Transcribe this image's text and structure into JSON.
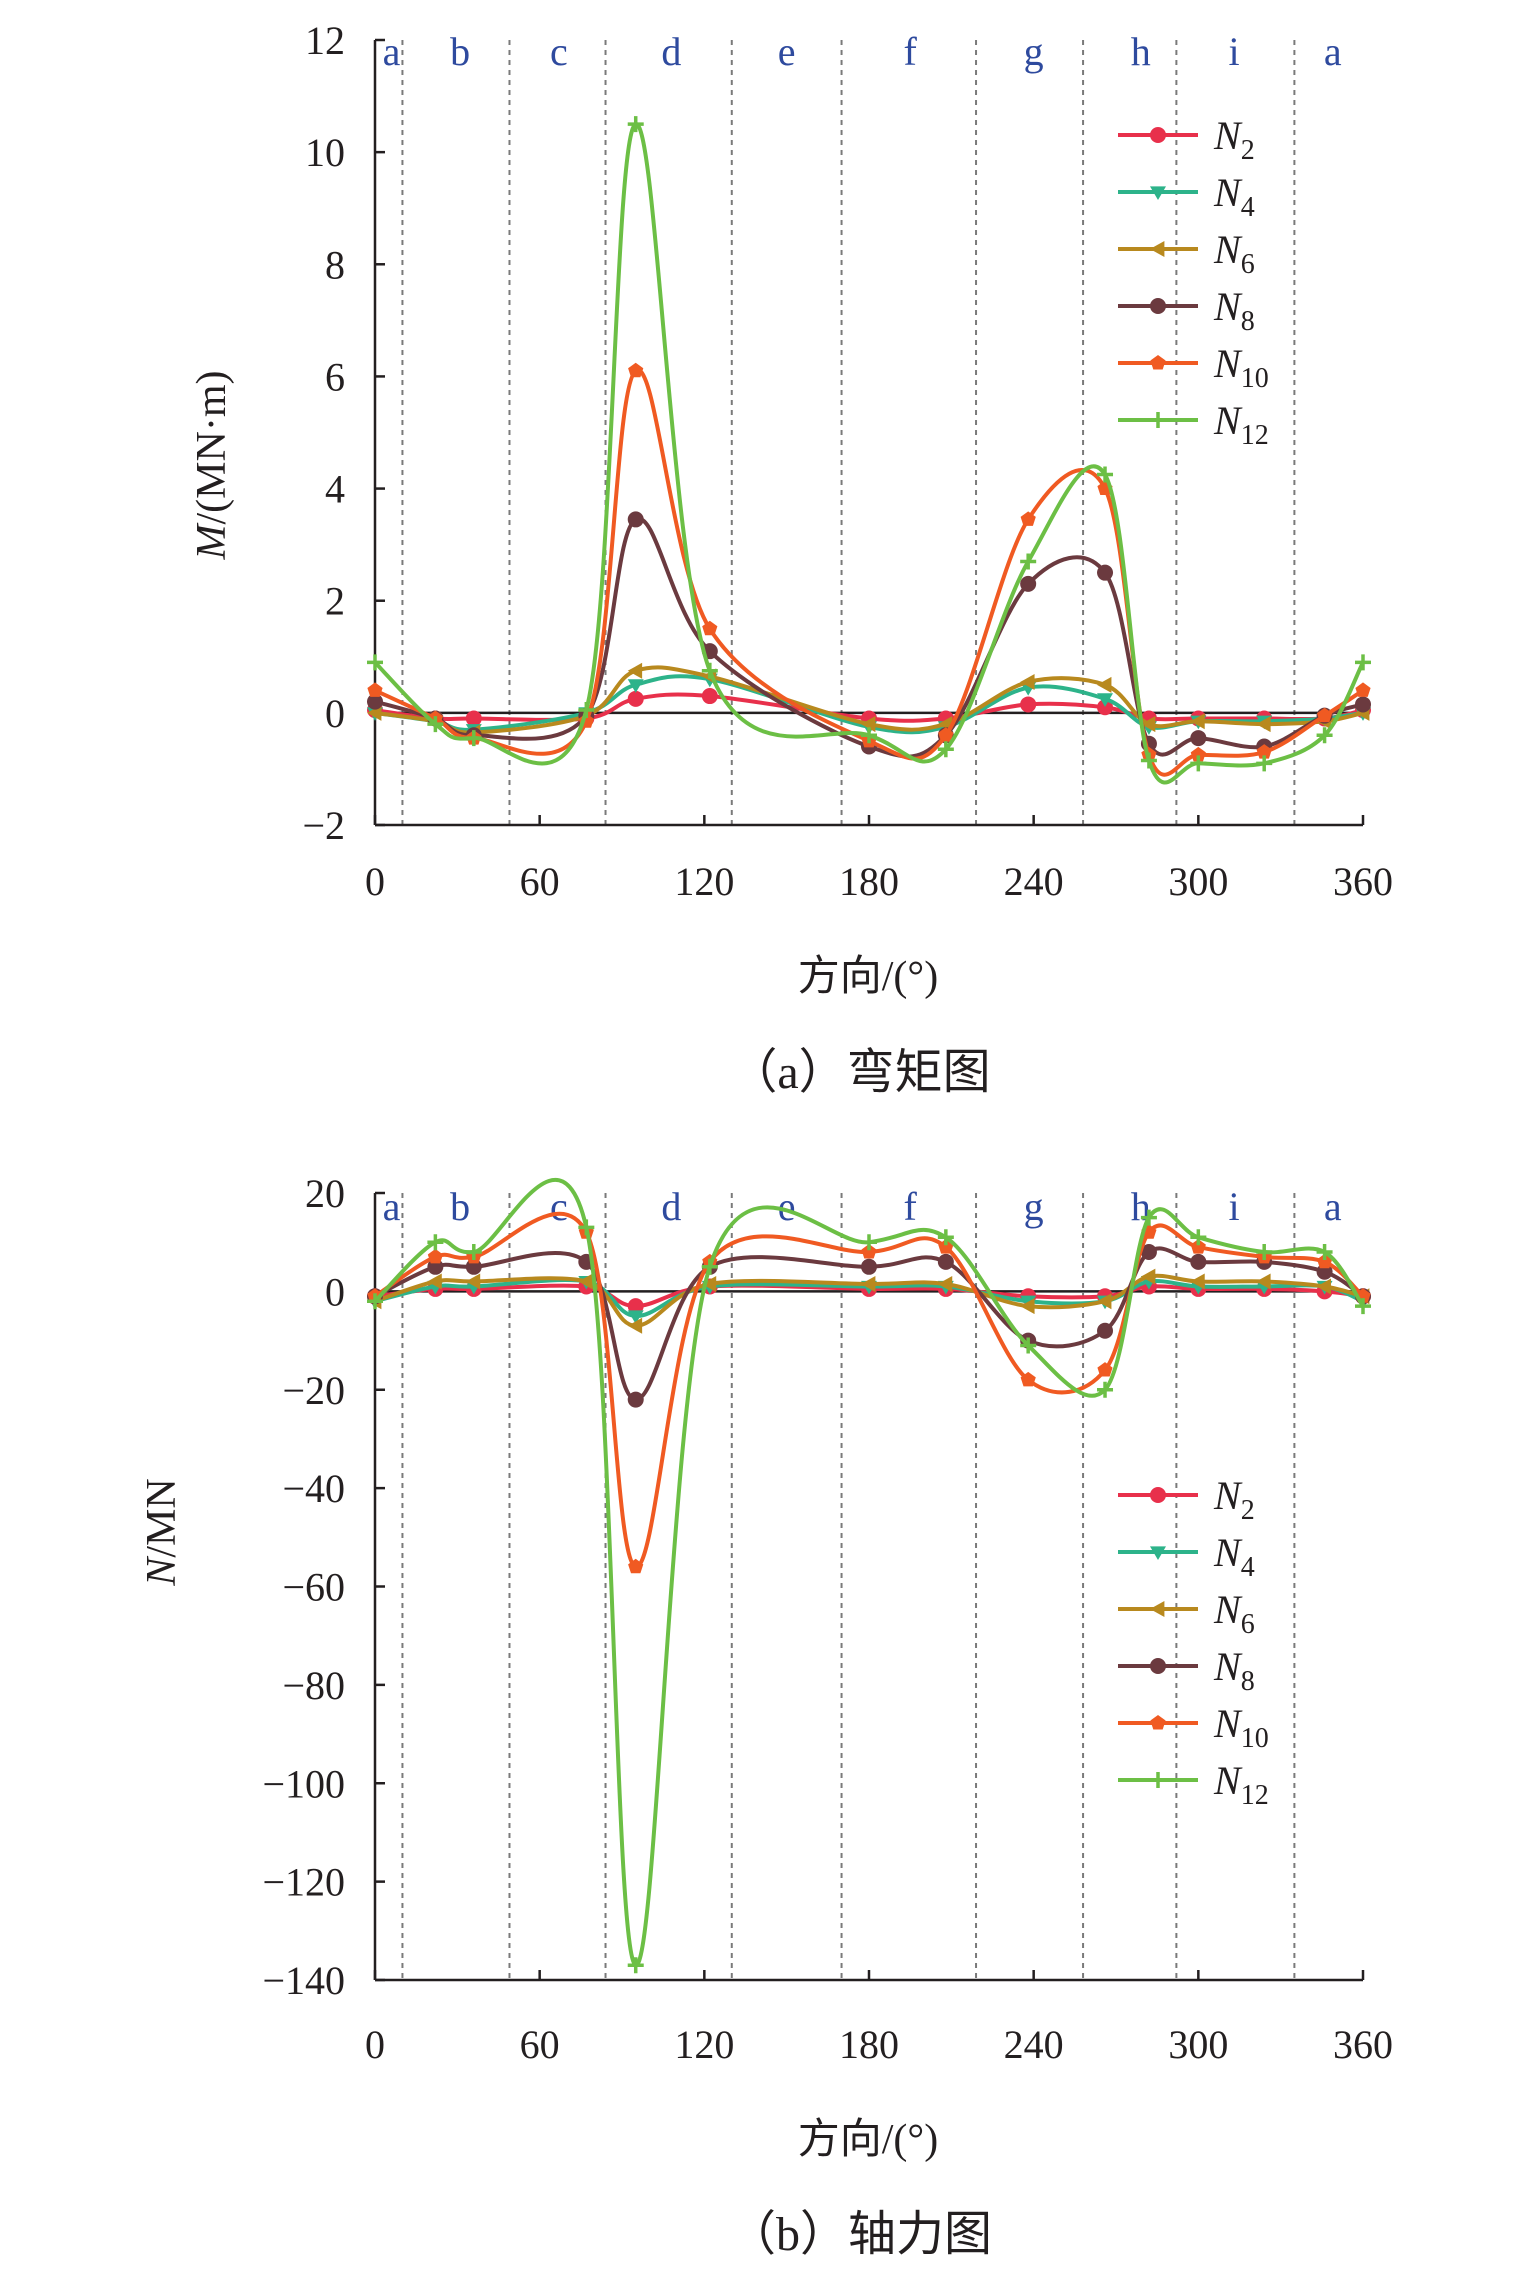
{
  "figure": {
    "series_styles": [
      {
        "key": "N2",
        "name": "N",
        "sub": "2",
        "color": "#e8304b",
        "marker": "circle"
      },
      {
        "key": "N4",
        "name": "N",
        "sub": "4",
        "color": "#2db38a",
        "marker": "tri-down"
      },
      {
        "key": "N6",
        "name": "N",
        "sub": "6",
        "color": "#b8891e",
        "marker": "tri-left"
      },
      {
        "key": "N8",
        "name": "N",
        "sub": "8",
        "color": "#6b3a3f",
        "marker": "circle"
      },
      {
        "key": "N10",
        "name": "N",
        "sub": "10",
        "color": "#f05a22",
        "marker": "pentagon"
      },
      {
        "key": "N12",
        "name": "N",
        "sub": "12",
        "color": "#6cbf45",
        "marker": "plus"
      }
    ]
  },
  "chart_data": [
    {
      "type": "line",
      "title": "",
      "caption": "（a）弯矩图",
      "xlabel": "方向/(°)",
      "ylabel_italic": "M",
      "ylabel_rest": "/(MN·m)",
      "xlim": [
        0,
        360
      ],
      "ylim": [
        -2,
        12
      ],
      "xticks": [
        "0",
        "60",
        "120",
        "180",
        "240",
        "300",
        "360"
      ],
      "yticks": [
        "−2",
        "0",
        "2",
        "4",
        "6",
        "8",
        "10",
        "12"
      ],
      "ytick_values": [
        -2,
        0,
        2,
        4,
        6,
        8,
        10,
        12
      ],
      "region_boundaries": [
        10,
        49,
        84,
        130,
        170,
        219,
        258,
        292,
        335
      ],
      "region_labels": [
        "a",
        "b",
        "c",
        "d",
        "e",
        "f",
        "g",
        "h",
        "i",
        "a"
      ],
      "region_label_x": [
        6,
        31,
        67,
        108,
        150,
        195,
        240,
        279,
        313,
        349
      ],
      "legend_position": "top-right",
      "x": [
        0,
        22,
        36,
        77,
        95,
        122,
        180,
        208,
        238,
        266,
        282,
        300,
        324,
        346,
        360
      ],
      "series": [
        {
          "name": "N2",
          "values": [
            0.05,
            -0.1,
            -0.1,
            -0.1,
            0.25,
            0.3,
            -0.1,
            -0.1,
            0.15,
            0.1,
            -0.1,
            -0.1,
            -0.1,
            -0.1,
            0.05
          ]
        },
        {
          "name": "N4",
          "values": [
            0.0,
            -0.15,
            -0.3,
            0.0,
            0.5,
            0.6,
            -0.25,
            -0.25,
            0.45,
            0.25,
            -0.25,
            -0.15,
            -0.15,
            -0.1,
            0.0
          ]
        },
        {
          "name": "N6",
          "values": [
            0.0,
            -0.15,
            -0.35,
            -0.05,
            0.75,
            0.65,
            -0.2,
            -0.2,
            0.55,
            0.5,
            -0.2,
            -0.15,
            -0.2,
            -0.15,
            0.0
          ]
        },
        {
          "name": "N8",
          "values": [
            0.2,
            -0.1,
            -0.4,
            -0.05,
            3.45,
            1.1,
            -0.6,
            -0.4,
            2.3,
            2.5,
            -0.55,
            -0.45,
            -0.6,
            -0.05,
            0.15
          ]
        },
        {
          "name": "N10",
          "values": [
            0.4,
            -0.1,
            -0.45,
            -0.15,
            6.1,
            1.5,
            -0.5,
            -0.4,
            3.45,
            4.0,
            -0.75,
            -0.75,
            -0.7,
            -0.05,
            0.4
          ]
        },
        {
          "name": "N12",
          "values": [
            0.9,
            -0.2,
            -0.45,
            0.05,
            10.5,
            0.75,
            -0.4,
            -0.65,
            2.7,
            4.25,
            -0.85,
            -0.9,
            -0.9,
            -0.4,
            0.9
          ]
        }
      ]
    },
    {
      "type": "line",
      "title": "",
      "caption": "（b）轴力图",
      "xlabel": "方向/(°)",
      "ylabel_italic": "N",
      "ylabel_rest": "/MN",
      "xlim": [
        0,
        360
      ],
      "ylim": [
        -140,
        20
      ],
      "xticks": [
        "0",
        "60",
        "120",
        "180",
        "240",
        "300",
        "360"
      ],
      "yticks": [
        "−140",
        "−120",
        "−100",
        "−80",
        "−60",
        "−40",
        "−20",
        "0",
        "20"
      ],
      "ytick_values": [
        -140,
        -120,
        -100,
        -80,
        -60,
        -40,
        -20,
        0,
        20
      ],
      "region_boundaries": [
        10,
        49,
        84,
        130,
        170,
        219,
        258,
        292,
        335
      ],
      "region_labels": [
        "a",
        "b",
        "c",
        "d",
        "e",
        "f",
        "g",
        "h",
        "i",
        "a"
      ],
      "region_label_x": [
        6,
        31,
        67,
        108,
        150,
        195,
        240,
        279,
        313,
        349
      ],
      "legend_position": "bottom-right",
      "x": [
        0,
        22,
        36,
        77,
        95,
        122,
        180,
        208,
        238,
        266,
        282,
        300,
        324,
        346,
        360
      ],
      "series": [
        {
          "name": "N2",
          "values": [
            -1,
            0.5,
            0.5,
            1,
            -3,
            1,
            0.5,
            0.5,
            -1,
            -1,
            1,
            0.5,
            0.5,
            0,
            -1
          ]
        },
        {
          "name": "N4",
          "values": [
            -2,
            1,
            1,
            2,
            -5,
            1,
            1,
            1,
            -2,
            -2,
            2,
            1,
            1,
            1,
            -2
          ]
        },
        {
          "name": "N6",
          "values": [
            -2,
            2,
            2,
            2,
            -7,
            1.5,
            1.5,
            1.5,
            -3,
            -2,
            3,
            2,
            2,
            1,
            -1
          ]
        },
        {
          "name": "N8",
          "values": [
            -1,
            5,
            5,
            6,
            -22,
            5,
            5,
            6,
            -10,
            -8,
            8,
            6,
            6,
            4,
            -1
          ]
        },
        {
          "name": "N10",
          "values": [
            -1,
            7,
            7,
            12,
            -56,
            6,
            8,
            9,
            -18,
            -16,
            12,
            9,
            7,
            6,
            -1
          ]
        },
        {
          "name": "N12",
          "values": [
            -2,
            10,
            8,
            13,
            -137,
            5,
            10,
            11,
            -11,
            -20,
            15,
            11,
            8,
            8,
            -3
          ]
        }
      ]
    }
  ]
}
